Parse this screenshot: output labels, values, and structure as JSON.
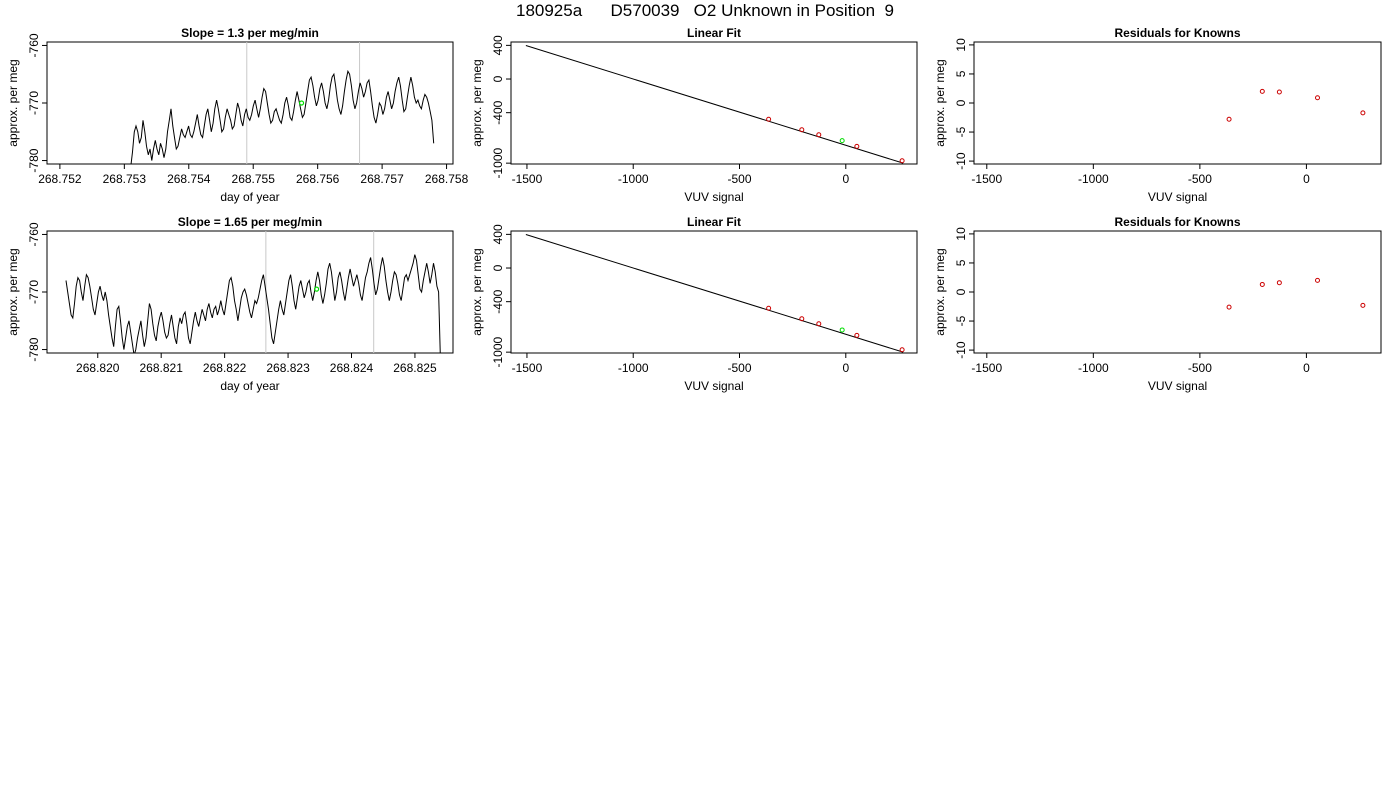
{
  "page_title": "180925a      D570039   O2 Unknown in Position  9",
  "chart_data": [
    {
      "type": "line",
      "title": "Slope =  1.3  per meg/min",
      "xlabel": "day of year",
      "ylabel": "approx. per meg",
      "xlim": [
        268.7518,
        268.7581
      ],
      "ylim": [
        -780.6,
        -759.4
      ],
      "x_ticks": [
        "268.752",
        "268.753",
        "268.754",
        "268.755",
        "268.756",
        "268.757",
        "268.758"
      ],
      "y_ticks": [
        "-780",
        "-770",
        "-760"
      ],
      "vlines": [
        268.7549,
        268.75665
      ],
      "series": [
        {
          "x_start": 268.7531,
          "x_end": 268.7578,
          "values": [
            -781,
            -778.5,
            -775,
            -774,
            -775,
            -777,
            -776,
            -773,
            -775,
            -777.5,
            -779,
            -778,
            -780,
            -778,
            -776.5,
            -778,
            -779,
            -777,
            -778,
            -779.5,
            -778,
            -775,
            -773,
            -771,
            -774,
            -776,
            -778,
            -777.5,
            -776,
            -774.5,
            -775.5,
            -776,
            -775,
            -774,
            -775.5,
            -776,
            -775,
            -773.5,
            -772,
            -774,
            -775.5,
            -776,
            -774,
            -772,
            -771,
            -773,
            -775,
            -773.5,
            -771,
            -769.5,
            -771,
            -773,
            -775,
            -774.5,
            -772.5,
            -771,
            -772,
            -773,
            -774.5,
            -774,
            -772,
            -770,
            -771,
            -773,
            -774,
            -772,
            -771,
            -772.5,
            -773,
            -772,
            -770.5,
            -769.5,
            -771,
            -772.5,
            -771,
            -769,
            -767.5,
            -768,
            -770,
            -772,
            -773.5,
            -773,
            -771.5,
            -771,
            -772,
            -773,
            -773.5,
            -772,
            -770,
            -769,
            -770.5,
            -772.5,
            -773,
            -771.5,
            -769.5,
            -768,
            -769.5,
            -771,
            -772.5,
            -772,
            -770,
            -768,
            -766,
            -765.5,
            -767,
            -769,
            -770.5,
            -769.5,
            -767.5,
            -766.5,
            -768,
            -770,
            -771,
            -769.5,
            -767,
            -765.5,
            -765,
            -767,
            -769.5,
            -771,
            -772,
            -770.5,
            -768,
            -766,
            -764.5,
            -765,
            -767,
            -769.5,
            -771,
            -770,
            -768,
            -766.5,
            -767.5,
            -769,
            -768,
            -766.5,
            -766,
            -768,
            -770.5,
            -772.5,
            -773.5,
            -772,
            -770,
            -770.5,
            -772,
            -771,
            -769,
            -768,
            -769.5,
            -771,
            -770,
            -768,
            -766.5,
            -765.5,
            -767,
            -769.5,
            -771.5,
            -771,
            -769,
            -767,
            -765.5,
            -767,
            -769,
            -770,
            -769.5,
            -770.5,
            -771,
            -769.5,
            -768.5,
            -769,
            -770,
            -771.5,
            -773,
            -777
          ],
          "color": "#000000"
        }
      ],
      "markers": [
        {
          "x": 268.75575,
          "y": -770,
          "color": "#00dd00"
        }
      ]
    },
    {
      "type": "scatter",
      "title": "Linear Fit",
      "xlabel": "VUV signal",
      "ylabel": "approx. per meg",
      "xlim": [
        -1575,
        335
      ],
      "ylim": [
        -1010,
        440
      ],
      "x_ticks": [
        "-1500",
        "-1000",
        "-500",
        "0"
      ],
      "y_ticks": [
        "400",
        "0",
        "-400",
        "-1000"
      ],
      "fit_line": [
        [
          -1505,
          398
        ],
        [
          270,
          -1000
        ]
      ],
      "points": [
        {
          "x": -363,
          "y": -478,
          "color": "#cc0000"
        },
        {
          "x": -207,
          "y": -603,
          "color": "#cc0000"
        },
        {
          "x": -127,
          "y": -663,
          "color": "#cc0000"
        },
        {
          "x": 52,
          "y": -800,
          "color": "#cc0000"
        },
        {
          "x": 265,
          "y": -971,
          "color": "#cc0000"
        },
        {
          "x": -17,
          "y": -732,
          "color": "#00dd00"
        }
      ]
    },
    {
      "type": "scatter",
      "title": "Residuals for Knowns",
      "xlabel": "VUV signal",
      "ylabel": "approx. per meg",
      "xlim": [
        -1560,
        350
      ],
      "ylim": [
        -10.5,
        10.5
      ],
      "x_ticks": [
        "-1500",
        "-1000",
        "-500",
        "0"
      ],
      "y_ticks": [
        "10",
        "5",
        "0",
        "-5",
        "-10"
      ],
      "points": [
        {
          "x": -363,
          "y": -2.8,
          "color": "#cc0000"
        },
        {
          "x": -207,
          "y": 2.0,
          "color": "#cc0000"
        },
        {
          "x": -127,
          "y": 1.9,
          "color": "#cc0000"
        },
        {
          "x": 52,
          "y": 0.9,
          "color": "#cc0000"
        },
        {
          "x": 265,
          "y": -1.7,
          "color": "#cc0000"
        }
      ]
    },
    {
      "type": "line",
      "title": "Slope =  1.65  per meg/min",
      "xlabel": "day of year",
      "ylabel": "approx. per meg",
      "xlim": [
        268.8192,
        268.8256
      ],
      "ylim": [
        -780.6,
        -759.4
      ],
      "x_ticks": [
        "268.820",
        "268.821",
        "268.822",
        "268.823",
        "268.824",
        "268.825"
      ],
      "y_ticks": [
        "-780",
        "-770",
        "-760"
      ],
      "vlines": [
        268.82265,
        268.82435
      ],
      "series": [
        {
          "x_start": 268.8195,
          "x_end": 268.8254,
          "values": [
            -768,
            -770,
            -772,
            -774,
            -774.5,
            -772,
            -769,
            -767.5,
            -768,
            -770,
            -771.5,
            -769,
            -767,
            -767.5,
            -769,
            -771,
            -773,
            -774,
            -772,
            -770,
            -769,
            -770.5,
            -771.5,
            -770,
            -771.5,
            -774,
            -776,
            -778,
            -779.5,
            -776,
            -773,
            -772.5,
            -775,
            -778,
            -780,
            -778,
            -776,
            -775,
            -777,
            -779,
            -781,
            -780,
            -778,
            -776.5,
            -775,
            -777.5,
            -779.5,
            -778,
            -775,
            -772,
            -773,
            -775.5,
            -777.5,
            -778.5,
            -776,
            -774.5,
            -773.5,
            -775,
            -777,
            -778,
            -777.5,
            -775.5,
            -774,
            -776,
            -778,
            -779,
            -776,
            -774.5,
            -775.5,
            -774,
            -773.5,
            -775.5,
            -778,
            -779,
            -777,
            -775,
            -773.5,
            -775,
            -776,
            -774.5,
            -773,
            -774,
            -775,
            -773,
            -772,
            -773.5,
            -774.5,
            -773,
            -772.5,
            -774,
            -773,
            -771.5,
            -773,
            -774,
            -772,
            -770,
            -768,
            -767.5,
            -769,
            -771.5,
            -773,
            -775,
            -773,
            -771,
            -770,
            -769.5,
            -770.5,
            -772,
            -773.5,
            -774.5,
            -773,
            -771.5,
            -772,
            -771,
            -769.5,
            -768,
            -767,
            -769,
            -771,
            -773,
            -775.5,
            -778,
            -779,
            -777,
            -775,
            -773,
            -771.5,
            -773,
            -774,
            -772,
            -770,
            -768,
            -767,
            -769,
            -771.5,
            -773,
            -771,
            -769,
            -768,
            -769.5,
            -771,
            -770,
            -768.5,
            -768,
            -770,
            -771.5,
            -770,
            -768,
            -766.5,
            -768,
            -770.5,
            -772,
            -770.5,
            -768.5,
            -766,
            -765,
            -766.5,
            -769,
            -771.5,
            -770,
            -767.5,
            -766.5,
            -768,
            -770,
            -771.5,
            -769.5,
            -767.5,
            -766,
            -767.5,
            -769,
            -768,
            -767,
            -768.5,
            -770.5,
            -771.5,
            -769.5,
            -767.5,
            -766.5,
            -765,
            -764,
            -766,
            -768.5,
            -770.5,
            -769.5,
            -767.5,
            -765.5,
            -764,
            -765.5,
            -768,
            -770,
            -771.5,
            -770,
            -768,
            -766.5,
            -767,
            -768.5,
            -770.5,
            -771.5,
            -769.5,
            -767.5,
            -767,
            -768,
            -767,
            -766,
            -765,
            -763.5,
            -764.5,
            -767,
            -769.5,
            -770,
            -768,
            -766.5,
            -765,
            -766.5,
            -768.5,
            -767,
            -765,
            -766.5,
            -769,
            -770,
            -781
          ],
          "color": "#000000"
        }
      ],
      "markers": [
        {
          "x": 268.82345,
          "y": -769.5,
          "color": "#00dd00"
        }
      ]
    },
    {
      "type": "scatter",
      "title": "Linear Fit",
      "xlabel": "VUV signal",
      "ylabel": "approx. per meg",
      "xlim": [
        -1575,
        335
      ],
      "ylim": [
        -1010,
        440
      ],
      "x_ticks": [
        "-1500",
        "-1000",
        "-500",
        "0"
      ],
      "y_ticks": [
        "400",
        "0",
        "-400",
        "-1000"
      ],
      "fit_line": [
        [
          -1505,
          398
        ],
        [
          270,
          -1000
        ]
      ],
      "points": [
        {
          "x": -363,
          "y": -478,
          "color": "#cc0000"
        },
        {
          "x": -207,
          "y": -603,
          "color": "#cc0000"
        },
        {
          "x": -127,
          "y": -663,
          "color": "#cc0000"
        },
        {
          "x": 52,
          "y": -800,
          "color": "#cc0000"
        },
        {
          "x": 265,
          "y": -971,
          "color": "#cc0000"
        },
        {
          "x": -17,
          "y": -736,
          "color": "#00dd00"
        }
      ]
    },
    {
      "type": "scatter",
      "title": "Residuals for Knowns",
      "xlabel": "VUV signal",
      "ylabel": "approx. per meg",
      "xlim": [
        -1560,
        350
      ],
      "ylim": [
        -10.5,
        10.5
      ],
      "x_ticks": [
        "-1500",
        "-1000",
        "-500",
        "0"
      ],
      "y_ticks": [
        "10",
        "5",
        "0",
        "-5",
        "-10"
      ],
      "points": [
        {
          "x": -363,
          "y": -2.6,
          "color": "#cc0000"
        },
        {
          "x": -207,
          "y": 1.3,
          "color": "#cc0000"
        },
        {
          "x": -127,
          "y": 1.6,
          "color": "#cc0000"
        },
        {
          "x": 52,
          "y": 2.0,
          "color": "#cc0000"
        },
        {
          "x": 265,
          "y": -2.3,
          "color": "#cc0000"
        }
      ]
    }
  ]
}
